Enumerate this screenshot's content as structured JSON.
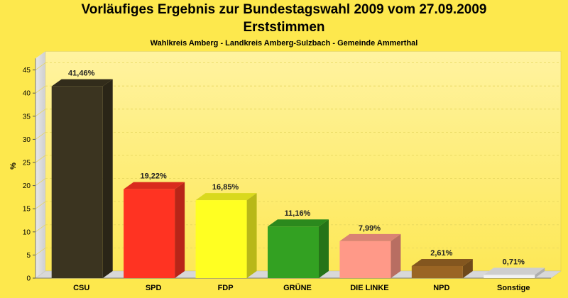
{
  "title": "Vorläufiges Ergebnis zur Bundestagswahl 2009 vom 27.09.2009",
  "subtitle": "Erststimmen",
  "subsubtitle": "Wahlkreis Amberg - Landkreis Amberg-Sulzbach - Gemeinde Ammerthal",
  "colors": {
    "background": "#fde84d",
    "plot_top": "#fff4a8",
    "plot_bottom": "#fde857"
  },
  "chart_data": {
    "type": "bar",
    "title": "Vorläufiges Ergebnis zur Bundestagswahl 2009 vom 27.09.2009",
    "subtitle": "Erststimmen",
    "xlabel": "",
    "ylabel": "%",
    "ylim": [
      0,
      47.5
    ],
    "yticks": [
      0,
      5,
      10,
      15,
      20,
      25,
      30,
      35,
      40,
      45
    ],
    "grid": true,
    "categories": [
      "CSU",
      "SPD",
      "FDP",
      "GRÜNE",
      "DIE LINKE",
      "NPD",
      "Sonstige"
    ],
    "values": [
      41.46,
      19.22,
      16.85,
      11.16,
      7.99,
      2.61,
      0.71
    ],
    "value_labels": [
      "41,46%",
      "19,22%",
      "16,85%",
      "11,16%",
      "7,99%",
      "2,61%",
      "0,71%"
    ],
    "bar_colors": [
      "#3b3420",
      "#ff3322",
      "#ffff22",
      "#33a122",
      "#ff9988",
      "#9a6524",
      "#f2f2f2"
    ]
  }
}
